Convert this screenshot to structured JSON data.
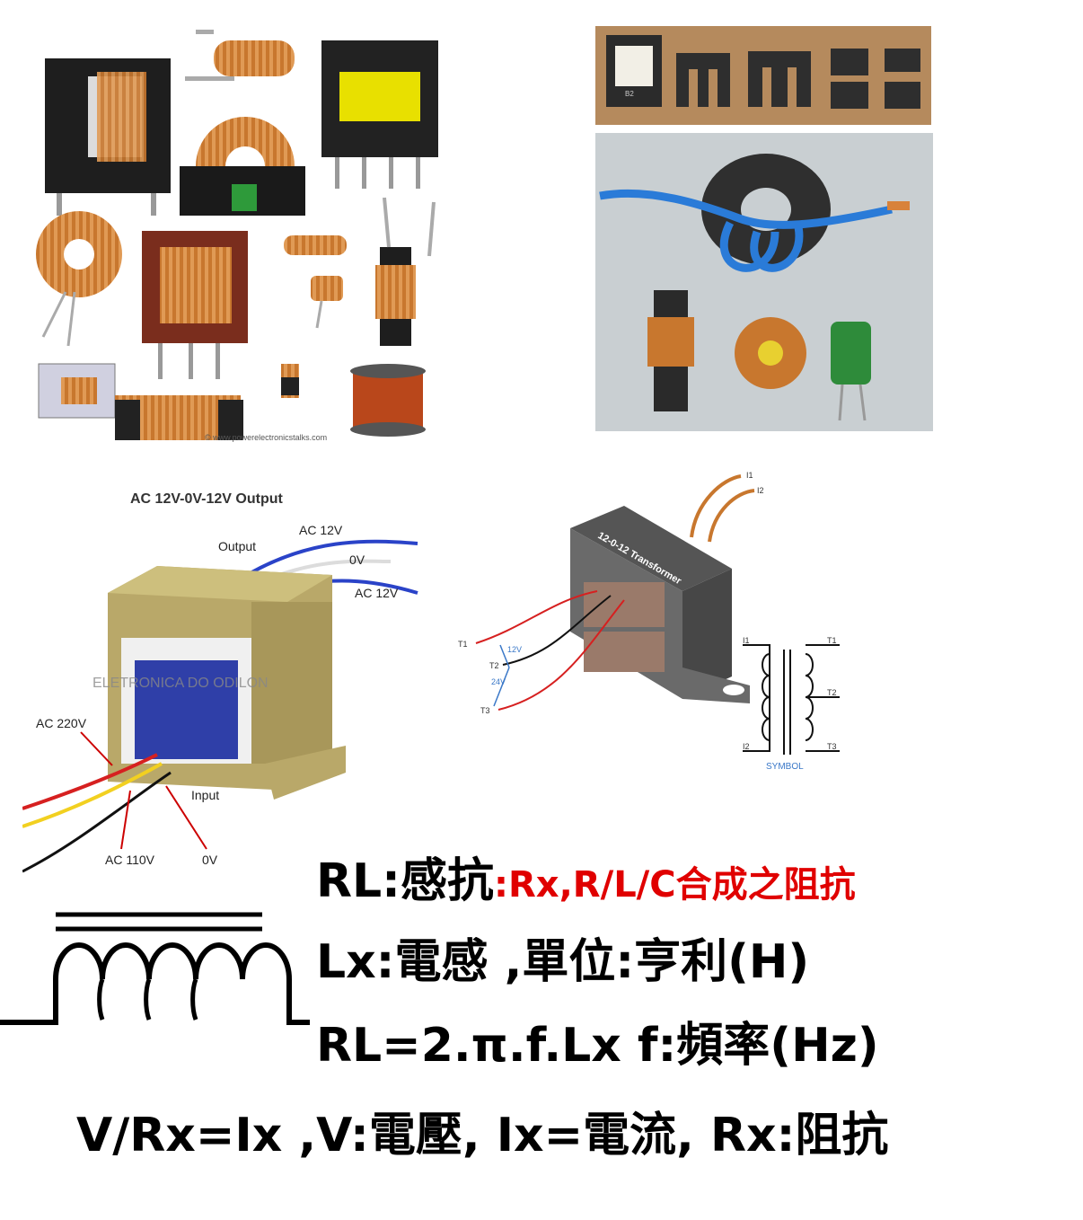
{
  "panels": {
    "inductor_collage": {
      "watermark": "© www.powerelectronicstalks.com"
    },
    "ferrite_cores": {
      "part_mark": "B2"
    },
    "ct_transformer": {
      "title": "AC 12V-0V-12V Output",
      "output_label": "Output",
      "out_ac12_top": "AC 12V",
      "out_0v": "0V",
      "out_ac12_bottom": "AC 12V",
      "watermark": "ELETRONICA DO ODILON",
      "in_220": "AC 220V",
      "input_label": "Input",
      "in_110": "AC 110V",
      "in_0v": "0V"
    },
    "transformer_3d": {
      "body_label": "12-0-12 Transformer",
      "i1": "I1",
      "i2": "I2",
      "t1": "T1",
      "t2": "T2",
      "t3": "T3",
      "v12": "12V",
      "v24": "24V",
      "sym_i1": "I1",
      "sym_i2": "I2",
      "sym_t1": "T1",
      "sym_t2": "T2",
      "sym_t3": "T3",
      "symbol_caption": "SYMBOL"
    }
  },
  "formulas": {
    "line1_black": "RL:感抗",
    "line1_red": ":Rx,R/L/C合成之阻抗",
    "line2": "Lx:電感  ,單位:亨利(H)",
    "line3": "RL=2.π.f.Lx  f:頻率(Hz)",
    "line4": "V/Rx=Ix ,V:電壓, Ix=電流, Rx:阻抗"
  },
  "colors": {
    "accent_red": "#e00000",
    "copper": "#c8772e",
    "ferrite": "#3a3a3a"
  }
}
